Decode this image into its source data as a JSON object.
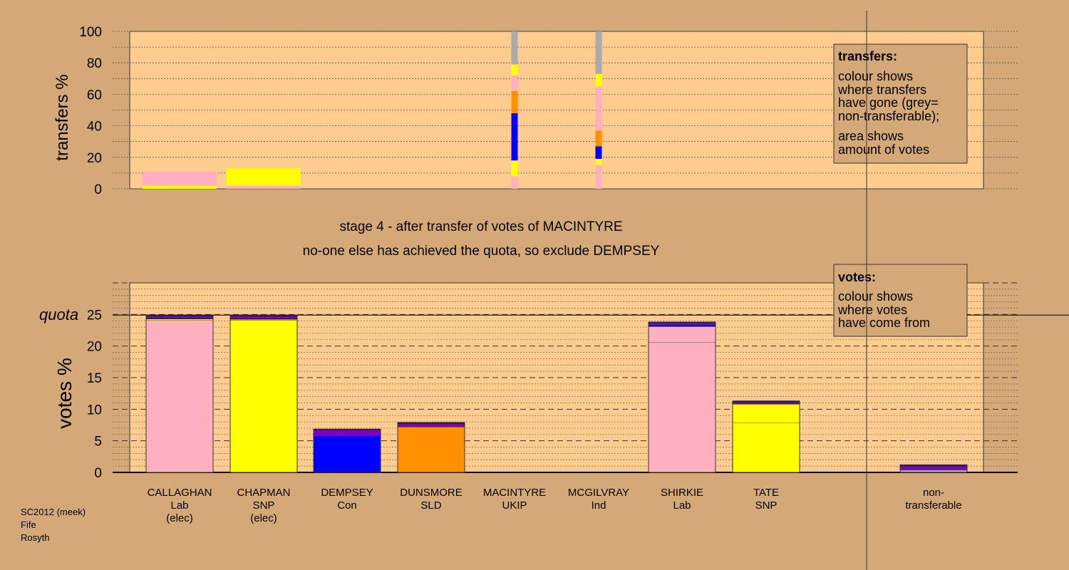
{
  "colors": {
    "background": "#d4a977",
    "plot_background": "#ffcc8f",
    "Lab": "#ffb0c0",
    "SNP": "#ffff00",
    "Con": "#0000ff",
    "SLD": "#ff9000",
    "UKIP": "#8000c0",
    "Ind": "#222222",
    "non_transferable": "#aaaaaa"
  },
  "stage_heading": "stage 4 - after transfer of votes of MACINTYRE",
  "stage_subheading": "no-one else has achieved the quota, so exclude DEMPSEY",
  "footer": [
    "SC2012 (meek)",
    "Fife",
    "Rosyth"
  ],
  "transfers_legend": {
    "title": "transfers:",
    "line1": [
      "colour shows",
      "where transfers",
      "have gone (grey=",
      "non-transferable);"
    ],
    "line2": [
      "area shows",
      "amount of votes"
    ]
  },
  "votes_legend": {
    "title": "votes:",
    "lines": [
      "colour shows",
      "where votes",
      "have come from"
    ]
  },
  "chart_data": [
    {
      "type": "bar",
      "title": "",
      "ylabel": "transfers %",
      "ylim": [
        0,
        100
      ],
      "yticks": [
        0,
        20,
        40,
        60,
        80,
        100
      ],
      "categories": [
        "CALLAGHAN",
        "CHAPMAN",
        "DEMPSEY",
        "DUNSMORE",
        "MACINTYRE",
        "MCGILVRAY",
        "SHIRKIE",
        "TATE"
      ],
      "series": [
        {
          "category": "CALLAGHAN",
          "segments": [
            {
              "color_key": "SNP",
              "from": 0,
              "to": 2
            },
            {
              "color_key": "Lab",
              "from": 2,
              "to": 11
            }
          ]
        },
        {
          "category": "CHAPMAN",
          "segments": [
            {
              "color_key": "Lab",
              "from": 0,
              "to": 2
            },
            {
              "color_key": "SNP",
              "from": 2,
              "to": 13
            }
          ]
        },
        {
          "category": "MACINTYRE",
          "segments": [
            {
              "color_key": "Lab",
              "from": 0,
              "to": 8
            },
            {
              "color_key": "SNP",
              "from": 8,
              "to": 18
            },
            {
              "color_key": "Con",
              "from": 18,
              "to": 48
            },
            {
              "color_key": "SLD",
              "from": 48,
              "to": 62
            },
            {
              "color_key": "Lab",
              "from": 62,
              "to": 72
            },
            {
              "color_key": "SNP",
              "from": 72,
              "to": 79
            },
            {
              "color_key": "non_transferable",
              "from": 79,
              "to": 100
            }
          ]
        },
        {
          "category": "MCGILVRAY",
          "segments": [
            {
              "color_key": "Lab",
              "from": 0,
              "to": 15
            },
            {
              "color_key": "SNP",
              "from": 15,
              "to": 19
            },
            {
              "color_key": "Con",
              "from": 19,
              "to": 27
            },
            {
              "color_key": "SLD",
              "from": 27,
              "to": 37
            },
            {
              "color_key": "Lab",
              "from": 37,
              "to": 65
            },
            {
              "color_key": "SNP",
              "from": 65,
              "to": 73
            },
            {
              "color_key": "non_transferable",
              "from": 73,
              "to": 100
            }
          ]
        }
      ]
    },
    {
      "type": "bar",
      "title": "",
      "ylabel": "votes %",
      "ylim": [
        0,
        30
      ],
      "yticks": [
        0,
        5,
        10,
        15,
        20,
        25
      ],
      "quota_label": "quota",
      "quota": 24.9,
      "categories": [
        {
          "name": "CALLAGHAN",
          "party": "Lab",
          "status": "(elec)"
        },
        {
          "name": "CHAPMAN",
          "party": "SNP",
          "status": "(elec)"
        },
        {
          "name": "DEMPSEY",
          "party": "Con",
          "status": ""
        },
        {
          "name": "DUNSMORE",
          "party": "SLD",
          "status": ""
        },
        {
          "name": "MACINTYRE",
          "party": "UKIP",
          "status": ""
        },
        {
          "name": "MCGILVRAY",
          "party": "Ind",
          "status": ""
        },
        {
          "name": "SHIRKIE",
          "party": "Lab",
          "status": ""
        },
        {
          "name": "TATE",
          "party": "SNP",
          "status": ""
        },
        {
          "name": "",
          "party": "",
          "status": ""
        },
        {
          "name": "non-",
          "party": "transferable",
          "status": ""
        }
      ],
      "series": [
        {
          "category": "CALLAGHAN",
          "segments": [
            {
              "color_key": "Lab",
              "from": 0,
              "to": 24.1
            },
            {
              "color_key": "SNP",
              "from": 24.1,
              "to": 24.3
            },
            {
              "color_key": "Con",
              "from": 24.3,
              "to": 24.45
            },
            {
              "color_key": "UKIP",
              "from": 24.45,
              "to": 24.75
            },
            {
              "color_key": "Ind",
              "from": 24.75,
              "to": 24.9
            }
          ]
        },
        {
          "category": "CHAPMAN",
          "segments": [
            {
              "color_key": "SNP",
              "from": 0,
              "to": 24.1
            },
            {
              "color_key": "Lab",
              "from": 24.1,
              "to": 24.25
            },
            {
              "color_key": "Con",
              "from": 24.25,
              "to": 24.4
            },
            {
              "color_key": "UKIP",
              "from": 24.4,
              "to": 24.75
            },
            {
              "color_key": "Ind",
              "from": 24.75,
              "to": 24.9
            }
          ]
        },
        {
          "category": "DEMPSEY",
          "segments": [
            {
              "color_key": "Con",
              "from": 0,
              "to": 5.8
            },
            {
              "color_key": "UKIP",
              "from": 5.8,
              "to": 6.7
            },
            {
              "color_key": "Ind",
              "from": 6.7,
              "to": 6.85
            }
          ]
        },
        {
          "category": "DUNSMORE",
          "segments": [
            {
              "color_key": "SLD",
              "from": 0,
              "to": 7.2
            },
            {
              "color_key": "UKIP",
              "from": 7.2,
              "to": 7.7
            },
            {
              "color_key": "Ind",
              "from": 7.7,
              "to": 7.9
            }
          ]
        },
        {
          "category": "SHIRKIE",
          "segments": [
            {
              "color_key": "Lab",
              "from": 0,
              "to": 20.6
            },
            {
              "color_key": "Lab",
              "from": 20.6,
              "to": 23.1
            },
            {
              "color_key": "Con",
              "from": 23.1,
              "to": 23.35
            },
            {
              "color_key": "UKIP",
              "from": 23.35,
              "to": 23.65
            },
            {
              "color_key": "Ind",
              "from": 23.65,
              "to": 23.8
            }
          ]
        },
        {
          "category": "TATE",
          "segments": [
            {
              "color_key": "SNP",
              "from": 0,
              "to": 7.9
            },
            {
              "color_key": "SNP",
              "from": 7.9,
              "to": 10.8
            },
            {
              "color_key": "UKIP",
              "from": 10.8,
              "to": 11.1
            },
            {
              "color_key": "Ind",
              "from": 11.1,
              "to": 11.3
            }
          ]
        },
        {
          "category": "non-transferable",
          "segments": [
            {
              "color_key": "non_transferable",
              "from": 0,
              "to": 0.4
            },
            {
              "color_key": "UKIP",
              "from": 0.4,
              "to": 1.0
            },
            {
              "color_key": "Ind",
              "from": 1.0,
              "to": 1.2
            }
          ]
        }
      ]
    }
  ]
}
